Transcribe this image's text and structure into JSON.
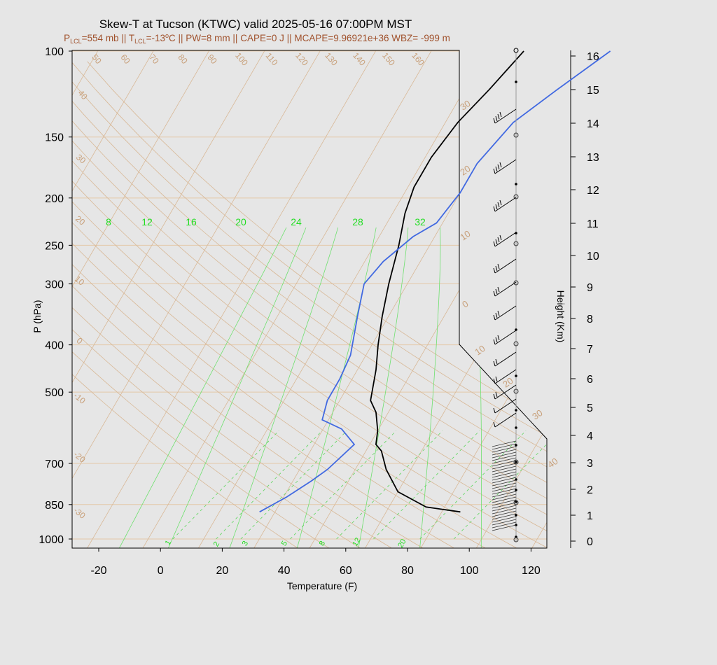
{
  "header": {
    "title": "Skew-T at Tucson (KTWC) valid 2025-05-16 07:00PM MST",
    "subtitle": {
      "p_pre": "P",
      "p_sub": "LCL",
      "p_val": "=554 mb || T",
      "t_sub": "LCL",
      "t_val": "=-13",
      "t_sup": "o",
      "rest": "C || PW=8 mm || CAPE=0 J || MCAPE=9.96921e+36 WBZ= -999 m"
    }
  },
  "chart_data": {
    "type": "line",
    "title": "Skew-T at Tucson (KTWC) valid 2025-05-16 07:00PM MST",
    "xlabel": "Temperature (F)",
    "ylabel": "P (hPa)",
    "y2label": "Height (Km)",
    "xlim": [
      -28,
      125
    ],
    "ylim": [
      1050,
      100
    ],
    "x_ticks": [
      "-20",
      "0",
      "20",
      "40",
      "60",
      "80",
      "100",
      "120"
    ],
    "p_ticks": [
      "100",
      "150",
      "200",
      "250",
      "300",
      "400",
      "500",
      "700",
      "850",
      "1000"
    ],
    "height_ticks": [
      "0",
      "1",
      "2",
      "3",
      "4",
      "5",
      "6",
      "7",
      "8",
      "9",
      "10",
      "11",
      "12",
      "13",
      "14",
      "15",
      "16"
    ],
    "isotherm_labels": [
      "-40",
      "-30",
      "-20",
      "-10",
      "0",
      "10",
      "20",
      "30",
      "40"
    ],
    "isotherm_labels_left": [
      "30",
      "20",
      "10",
      "0",
      "-10",
      "-20",
      "-30"
    ],
    "dry_adiabat_labels": [
      "40",
      "50",
      "60",
      "70",
      "80",
      "90",
      "100",
      "110",
      "120",
      "130",
      "140",
      "150",
      "160"
    ],
    "mixing_ratio_labels_top": [
      "8",
      "12",
      "16",
      "20",
      "24",
      "28",
      "32"
    ],
    "mixing_ratio_labels_bottom": [
      "1",
      "2",
      "3",
      "5",
      "8",
      "12",
      "20"
    ],
    "series": [
      {
        "name": "Temperature",
        "color": "#000000",
        "points": [
          [
            880,
            92
          ],
          [
            860,
            80
          ],
          [
            800,
            68
          ],
          [
            720,
            60
          ],
          [
            660,
            55
          ],
          [
            640,
            52
          ],
          [
            600,
            50
          ],
          [
            550,
            46
          ],
          [
            520,
            42
          ],
          [
            450,
            38
          ],
          [
            400,
            34
          ],
          [
            350,
            30
          ],
          [
            300,
            26
          ],
          [
            250,
            22
          ],
          [
            215,
            18
          ],
          [
            190,
            16
          ],
          [
            165,
            16
          ],
          [
            140,
            18
          ],
          [
            120,
            22
          ],
          [
            100,
            26
          ]
        ]
      },
      {
        "name": "Dewpoint",
        "color": "#4169e1",
        "points": [
          [
            880,
            27
          ],
          [
            820,
            33
          ],
          [
            760,
            38
          ],
          [
            720,
            41
          ],
          [
            640,
            45
          ],
          [
            595,
            38
          ],
          [
            570,
            30
          ],
          [
            520,
            28
          ],
          [
            470,
            28
          ],
          [
            420,
            27
          ],
          [
            350,
            22
          ],
          [
            300,
            18
          ],
          [
            270,
            20
          ],
          [
            240,
            25
          ],
          [
            225,
            30
          ],
          [
            195,
            32
          ],
          [
            170,
            32
          ],
          [
            140,
            36
          ],
          [
            120,
            44
          ],
          [
            100,
            54
          ]
        ]
      }
    ],
    "wind_barbs": [
      {
        "p": 140,
        "barbs": "50"
      },
      {
        "p": 170,
        "barbs": "40"
      },
      {
        "p": 200,
        "barbs": "40"
      },
      {
        "p": 250,
        "barbs": "40"
      },
      {
        "p": 290,
        "barbs": "35"
      },
      {
        "p": 320,
        "barbs": "30"
      },
      {
        "p": 350,
        "barbs": "30"
      },
      {
        "p": 420,
        "barbs": "25"
      },
      {
        "p": 460,
        "barbs": "20"
      },
      {
        "p": 500,
        "barbs": "15"
      },
      {
        "p": 550,
        "barbs": "10"
      },
      {
        "p": 600,
        "barbs": "10"
      }
    ],
    "grid": true
  },
  "colors": {
    "background": "#e6e6e6",
    "temperature": "#000000",
    "dewpoint": "#4169e1",
    "isotherm": "#d8b896",
    "mixing_ratio": "#3cd33c",
    "title_sub": "#a0522d"
  }
}
